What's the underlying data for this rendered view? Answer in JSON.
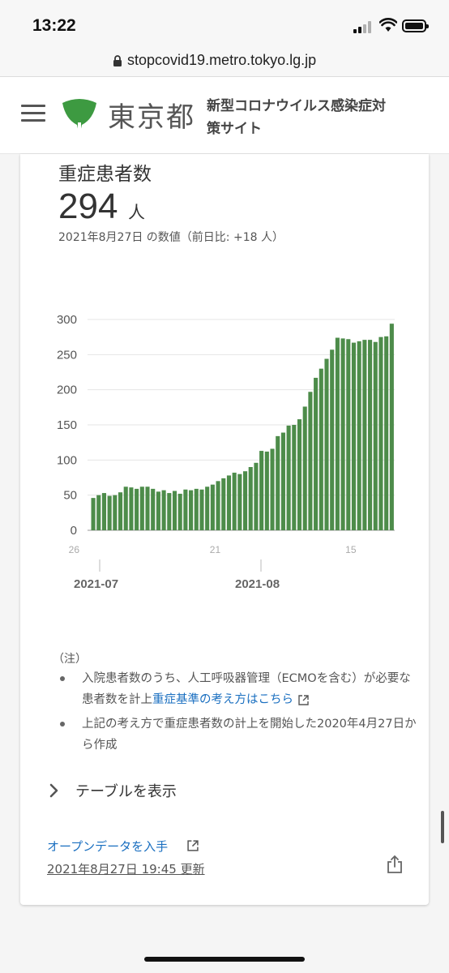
{
  "status_bar": {
    "time": "13:22"
  },
  "browser": {
    "url": "stopcovid19.metro.tokyo.lg.jp"
  },
  "header": {
    "site_name": "東京都",
    "subtitle": "新型コロナウイルス感染症対策サイト"
  },
  "card": {
    "title": "重症患者数",
    "value": "294",
    "unit": "人",
    "date_line": "2021年8月27日 の数値（前日比: +18 人）"
  },
  "chart_data": {
    "type": "bar",
    "color": "#4d8c4a",
    "ylim": [
      0,
      300
    ],
    "yticks": [
      "0",
      "50",
      "100",
      "150",
      "200",
      "250",
      "300"
    ],
    "xticks": [
      {
        "label": "26",
        "index": 0
      },
      {
        "label": "21",
        "index": 26
      },
      {
        "label": "15",
        "index": 51
      }
    ],
    "month_labels": [
      {
        "label": "2021-07",
        "index": 5
      },
      {
        "label": "2021-08",
        "index": 37
      }
    ],
    "start_label": "2021-07-26",
    "values": [
      46,
      50,
      53,
      49,
      50,
      54,
      62,
      61,
      59,
      62,
      62,
      59,
      55,
      57,
      53,
      56,
      52,
      58,
      57,
      59,
      58,
      62,
      65,
      70,
      74,
      78,
      82,
      80,
      84,
      90,
      96,
      113,
      112,
      116,
      134,
      139,
      149,
      150,
      158,
      176,
      197,
      217,
      230,
      244,
      257,
      274,
      273,
      272,
      267,
      269,
      271,
      271,
      268,
      275,
      276,
      294
    ]
  },
  "notes": {
    "heading": "（注）",
    "items": [
      {
        "text": "入院患者数のうち、人工呼吸器管理（ECMOを含む）が必要な患者数を計上",
        "link": "重症基準の考え方はこちら"
      },
      {
        "text": "上記の考え方で重症患者数の計上を開始した2020年4月27日から作成"
      }
    ]
  },
  "table_toggle": {
    "label": "テーブルを表示"
  },
  "footer": {
    "open_data": "オープンデータを入手",
    "updated": "2021年8月27日 19:45 更新"
  },
  "icons": {
    "menu": "hamburger-menu-icon",
    "logo": "ginkgo-leaf-icon",
    "share": "share-icon",
    "external": "external-link-icon"
  }
}
